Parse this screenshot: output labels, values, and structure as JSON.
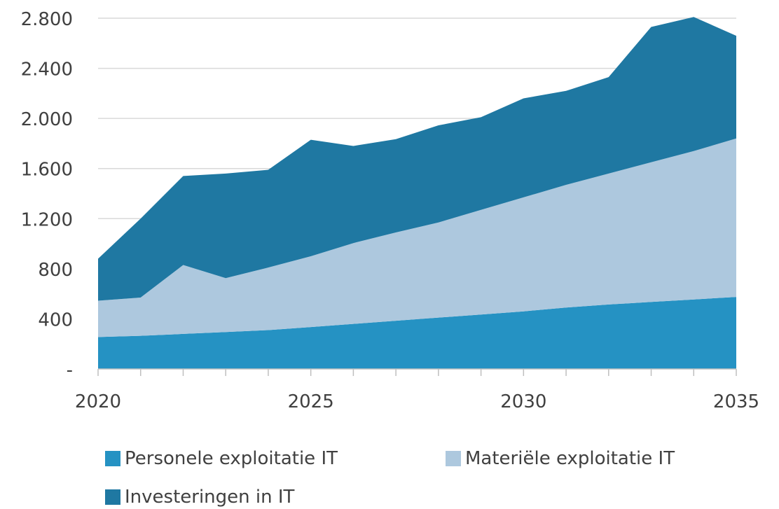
{
  "chart_data": {
    "type": "area",
    "stacked": true,
    "x": [
      2020,
      2021,
      2022,
      2023,
      2024,
      2025,
      2026,
      2027,
      2028,
      2029,
      2030,
      2031,
      2032,
      2033,
      2034,
      2035
    ],
    "series": [
      {
        "name": "Personele exploitatie IT",
        "color": "#2592c3",
        "values": [
          255,
          265,
          280,
          295,
          310,
          335,
          360,
          385,
          410,
          435,
          460,
          490,
          515,
          535,
          555,
          575
        ]
      },
      {
        "name": "Materiële exploitatie IT",
        "color": "#adc8de",
        "values": [
          290,
          305,
          550,
          430,
          500,
          565,
          645,
          705,
          760,
          835,
          910,
          980,
          1045,
          1115,
          1185,
          1265
        ]
      },
      {
        "name": "Investeringen in IT",
        "color": "#1f78a2",
        "values": [
          335,
          630,
          710,
          835,
          780,
          930,
          775,
          745,
          775,
          740,
          790,
          750,
          770,
          1080,
          1070,
          820
        ]
      }
    ],
    "ylim": [
      0,
      2800
    ],
    "y_ticks": [
      "-",
      "400",
      "800",
      "1.200",
      "1.600",
      "2.000",
      "2.400",
      "2.800"
    ],
    "y_tick_values": [
      0,
      400,
      800,
      1200,
      1600,
      2000,
      2400,
      2800
    ],
    "x_ticks": [
      "2020",
      "2025",
      "2030",
      "2035"
    ],
    "x_tick_values": [
      2020,
      2025,
      2030,
      2035
    ],
    "grid": true,
    "legend_position": "bottom",
    "gridline_color": "#d9d9d9"
  }
}
